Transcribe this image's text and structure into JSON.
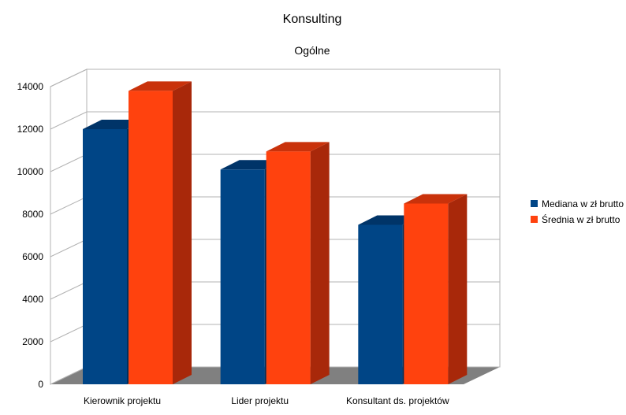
{
  "chart_data": {
    "type": "bar",
    "title": "Konsulting",
    "subtitle": "Ogólne",
    "xlabel": "",
    "ylabel": "",
    "categories": [
      "Kierownik projektu",
      "Lider projektu",
      "Konsultant ds. projektów"
    ],
    "series": [
      {
        "name": "Mediana w zł brutto",
        "values": [
          12000,
          10100,
          7500
        ],
        "color": "#004586",
        "side_color": "#002f5c",
        "top_color": "#003468"
      },
      {
        "name": "Średnia w zł brutto",
        "values": [
          13800,
          10950,
          8500
        ],
        "color": "#ff420e",
        "side_color": "#a8280a",
        "top_color": "#c9320b"
      }
    ],
    "ylim": [
      0,
      14000
    ],
    "yticks": [
      "0",
      "2000",
      "4000",
      "6000",
      "8000",
      "10000",
      "12000",
      "14000"
    ],
    "tick_step": 2000,
    "grid": true,
    "style": "3d",
    "legend_position": "right",
    "colors": {
      "grid": "#b3b3b3",
      "floor": "#808080",
      "wall": "#ffffff"
    }
  }
}
